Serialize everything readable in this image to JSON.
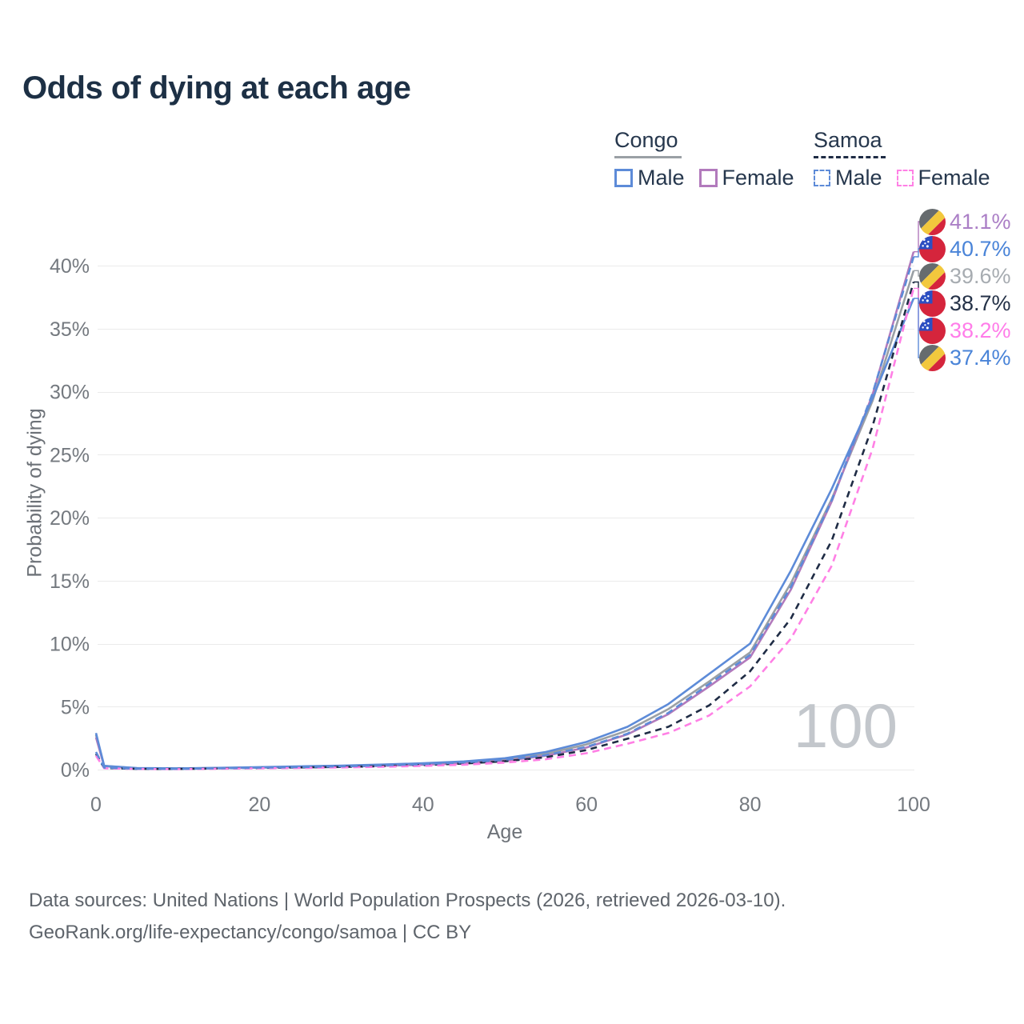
{
  "title": "Odds of dying at each age",
  "watermark": "100",
  "legend": {
    "groups": [
      {
        "name": "Congo",
        "line_style": "solid",
        "line_color": "#9aa0a5",
        "items": [
          {
            "label": "Male",
            "color": "#5d8bd8",
            "dashed": false
          },
          {
            "label": "Female",
            "color": "#b27abc",
            "dashed": false
          }
        ]
      },
      {
        "name": "Samoa",
        "line_style": "dashed",
        "line_color": "#1f2c45",
        "items": [
          {
            "label": "Male",
            "color": "#5d8bd8",
            "dashed": true
          },
          {
            "label": "Female",
            "color": "#ff80e5",
            "dashed": true
          }
        ]
      }
    ]
  },
  "chart_data": {
    "type": "line",
    "title": "Odds of dying at each age",
    "xlabel": "Age",
    "ylabel": "Probability of dying",
    "xlim": [
      0,
      100
    ],
    "ylim": [
      0,
      43
    ],
    "grid": "horizontal",
    "legend_position": "top-right",
    "x_ticks": [
      {
        "v": 0,
        "label": "0"
      },
      {
        "v": 20,
        "label": "20"
      },
      {
        "v": 40,
        "label": "40"
      },
      {
        "v": 60,
        "label": "60"
      },
      {
        "v": 80,
        "label": "80"
      },
      {
        "v": 100,
        "label": "100"
      }
    ],
    "y_ticks": [
      {
        "v": 0,
        "label": "0%"
      },
      {
        "v": 5,
        "label": "5%"
      },
      {
        "v": 10,
        "label": "10%"
      },
      {
        "v": 15,
        "label": "15%"
      },
      {
        "v": 20,
        "label": "20%"
      },
      {
        "v": 25,
        "label": "25%"
      },
      {
        "v": 30,
        "label": "30%"
      },
      {
        "v": 35,
        "label": "35%"
      },
      {
        "v": 40,
        "label": "40%"
      }
    ],
    "ages": [
      0,
      1,
      5,
      10,
      15,
      20,
      25,
      30,
      35,
      40,
      45,
      50,
      55,
      60,
      65,
      70,
      75,
      80,
      85,
      90,
      95,
      100
    ],
    "series": [
      {
        "id": "congo-both",
        "country": "Congo",
        "sex": "Both",
        "color": "#9aa0a5",
        "dash": null,
        "label_row": 2,
        "end_label": "39.6%",
        "label_color": "#a7acb1",
        "flag": "congo",
        "values": [
          2.75,
          0.29,
          0.11,
          0.09,
          0.13,
          0.18,
          0.23,
          0.28,
          0.35,
          0.44,
          0.58,
          0.8,
          1.25,
          2.0,
          3.1,
          4.8,
          7.0,
          9.3,
          14.8,
          21.5,
          29.3,
          39.6
        ]
      },
      {
        "id": "congo-female",
        "country": "Congo",
        "sex": "Female",
        "color": "#b27abc",
        "dash": null,
        "label_row": 0,
        "end_label": "41.1%",
        "label_color": "#ab7fc6",
        "flag": "congo",
        "values": [
          2.55,
          0.27,
          0.1,
          0.08,
          0.11,
          0.15,
          0.19,
          0.24,
          0.3,
          0.38,
          0.5,
          0.7,
          1.1,
          1.75,
          2.8,
          4.4,
          6.6,
          8.9,
          14.3,
          21.3,
          29.8,
          41.1
        ]
      },
      {
        "id": "congo-male",
        "country": "Congo",
        "sex": "Male",
        "color": "#5d8bd8",
        "dash": null,
        "label_row": 5,
        "end_label": "37.4%",
        "label_color": "#4a84d8",
        "flag": "congo",
        "values": [
          2.9,
          0.3,
          0.12,
          0.1,
          0.14,
          0.2,
          0.26,
          0.32,
          0.4,
          0.5,
          0.65,
          0.9,
          1.4,
          2.2,
          3.4,
          5.2,
          7.6,
          10.0,
          15.8,
          22.3,
          29.5,
          37.4
        ]
      },
      {
        "id": "samoa-both",
        "country": "Samoa",
        "sex": "Both",
        "color": "#1f2c45",
        "dash": "8 6",
        "label_row": 3,
        "end_label": "38.7%",
        "label_color": "#243147",
        "flag": "samoa",
        "values": [
          1.25,
          0.13,
          0.06,
          0.05,
          0.09,
          0.13,
          0.17,
          0.21,
          0.27,
          0.36,
          0.48,
          0.66,
          0.98,
          1.55,
          2.45,
          3.4,
          5.1,
          7.8,
          12.0,
          18.2,
          27.3,
          38.7
        ]
      },
      {
        "id": "samoa-female",
        "country": "Samoa",
        "sex": "Female",
        "color": "#ff80e5",
        "dash": "9 6",
        "label_row": 4,
        "end_label": "38.2%",
        "label_color": "#ff7de9",
        "flag": "samoa",
        "values": [
          1.1,
          0.11,
          0.05,
          0.04,
          0.07,
          0.1,
          0.13,
          0.17,
          0.22,
          0.29,
          0.39,
          0.55,
          0.82,
          1.3,
          2.05,
          2.9,
          4.3,
          6.6,
          10.4,
          16.2,
          25.5,
          38.2
        ]
      },
      {
        "id": "samoa-male",
        "country": "Samoa",
        "sex": "Male",
        "color": "#5d8bd8",
        "dash": "9 6",
        "label_row": 1,
        "end_label": "40.7%",
        "label_color": "#4a84d8",
        "flag": "samoa",
        "values": [
          1.4,
          0.15,
          0.07,
          0.06,
          0.1,
          0.15,
          0.2,
          0.26,
          0.33,
          0.43,
          0.57,
          0.78,
          1.15,
          1.8,
          2.85,
          4.5,
          6.8,
          9.1,
          14.5,
          21.4,
          29.9,
          40.7
        ]
      }
    ]
  },
  "footer": {
    "line1": "Data sources: United Nations | World Population Prospects (2026, retrieved 2026-03-10).",
    "line2": "GeoRank.org/life-expectancy/congo/samoa | CC BY"
  }
}
